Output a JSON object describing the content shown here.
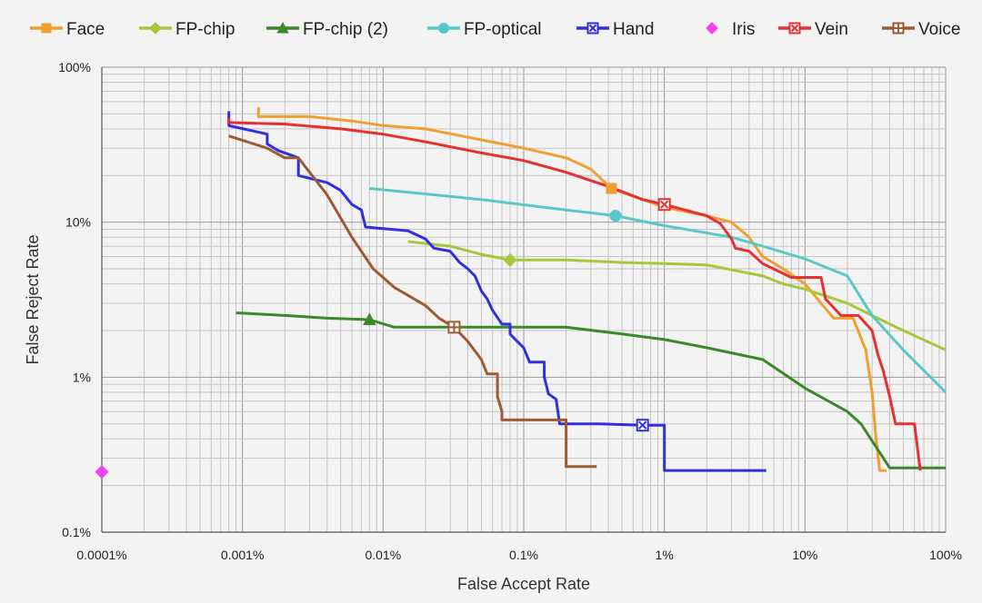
{
  "chart_data": {
    "type": "line",
    "xscale": "log",
    "yscale": "log",
    "xlabel": "False Accept Rate",
    "ylabel": "False Reject Rate",
    "xlim": [
      0.0001,
      100
    ],
    "ylim": [
      0.1,
      100
    ],
    "grid": true,
    "legend_position": "top",
    "x_ticks": [
      {
        "value": 0.0001,
        "label": "0.0001%"
      },
      {
        "value": 0.001,
        "label": "0.001%"
      },
      {
        "value": 0.01,
        "label": "0.01%"
      },
      {
        "value": 0.1,
        "label": "0.1%"
      },
      {
        "value": 1,
        "label": "1%"
      },
      {
        "value": 10,
        "label": "10%"
      },
      {
        "value": 100,
        "label": "100%"
      }
    ],
    "y_ticks": [
      {
        "value": 0.1,
        "label": "0.1%"
      },
      {
        "value": 1,
        "label": "1%"
      },
      {
        "value": 10,
        "label": "10%"
      },
      {
        "value": 100,
        "label": "100%"
      }
    ],
    "series": [
      {
        "name": "Face",
        "color": "#f0a030",
        "marker": "square",
        "marker_at": [
          0.42,
          16.5
        ],
        "points": [
          [
            0.0013,
            55
          ],
          [
            0.0013,
            48
          ],
          [
            0.003,
            48
          ],
          [
            0.006,
            45
          ],
          [
            0.01,
            42
          ],
          [
            0.02,
            40
          ],
          [
            0.05,
            34
          ],
          [
            0.1,
            30
          ],
          [
            0.2,
            26
          ],
          [
            0.3,
            22
          ],
          [
            0.42,
            16.5
          ],
          [
            0.7,
            14
          ],
          [
            1,
            12.5
          ],
          [
            2,
            11
          ],
          [
            3,
            10
          ],
          [
            4,
            8
          ],
          [
            5,
            6
          ],
          [
            7,
            5
          ],
          [
            10,
            4
          ],
          [
            13,
            3
          ],
          [
            16,
            2.4
          ],
          [
            22,
            2.4
          ],
          [
            27,
            1.5
          ],
          [
            30,
            0.8
          ],
          [
            32,
            0.4
          ],
          [
            34,
            0.25
          ],
          [
            38,
            0.25
          ]
        ]
      },
      {
        "name": "FP-chip",
        "color": "#a8c83c",
        "marker": "diamond",
        "marker_at": [
          0.08,
          5.7
        ],
        "points": [
          [
            0.015,
            7.5
          ],
          [
            0.03,
            7
          ],
          [
            0.05,
            6.2
          ],
          [
            0.08,
            5.7
          ],
          [
            0.2,
            5.7
          ],
          [
            0.5,
            5.5
          ],
          [
            1,
            5.4
          ],
          [
            2,
            5.3
          ],
          [
            5,
            4.5
          ],
          [
            7,
            4
          ],
          [
            10,
            3.7
          ],
          [
            20,
            3
          ],
          [
            30,
            2.5
          ],
          [
            50,
            2
          ],
          [
            100,
            1.5
          ]
        ]
      },
      {
        "name": "FP-chip (2)",
        "color": "#3a8a2a",
        "marker": "triangle",
        "marker_at": [
          0.008,
          2.35
        ],
        "points": [
          [
            0.0009,
            2.6
          ],
          [
            0.002,
            2.5
          ],
          [
            0.004,
            2.4
          ],
          [
            0.008,
            2.35
          ],
          [
            0.012,
            2.1
          ],
          [
            0.05,
            2.1
          ],
          [
            0.2,
            2.1
          ],
          [
            0.5,
            1.9
          ],
          [
            1,
            1.75
          ],
          [
            2,
            1.55
          ],
          [
            5,
            1.3
          ],
          [
            10,
            0.85
          ],
          [
            20,
            0.6
          ],
          [
            25,
            0.5
          ],
          [
            40,
            0.26
          ],
          [
            100,
            0.26
          ]
        ]
      },
      {
        "name": "FP-optical",
        "color": "#5ac8c8",
        "marker": "circle",
        "marker_at": [
          0.45,
          11
        ],
        "points": [
          [
            0.008,
            16.5
          ],
          [
            0.05,
            14
          ],
          [
            0.2,
            12
          ],
          [
            0.45,
            11
          ],
          [
            1,
            9.5
          ],
          [
            3,
            8
          ],
          [
            5,
            7
          ],
          [
            10,
            5.8
          ],
          [
            20,
            4.5
          ],
          [
            30,
            2.5
          ],
          [
            50,
            1.5
          ],
          [
            100,
            0.8
          ]
        ]
      },
      {
        "name": "Hand",
        "color": "#3030e0",
        "marker": "xsquare",
        "marker_at": [
          0.7,
          0.49
        ],
        "points": [
          [
            0.0008,
            52
          ],
          [
            0.0008,
            42
          ],
          [
            0.0015,
            37
          ],
          [
            0.0015,
            32
          ],
          [
            0.0018,
            29
          ],
          [
            0.0025,
            26
          ],
          [
            0.0025,
            20
          ],
          [
            0.004,
            18
          ],
          [
            0.005,
            16
          ],
          [
            0.006,
            13
          ],
          [
            0.007,
            12
          ],
          [
            0.0075,
            9.3
          ],
          [
            0.015,
            8.8
          ],
          [
            0.02,
            7.8
          ],
          [
            0.023,
            6.8
          ],
          [
            0.03,
            6.5
          ],
          [
            0.035,
            5.5
          ],
          [
            0.04,
            5
          ],
          [
            0.045,
            4.5
          ],
          [
            0.05,
            3.6
          ],
          [
            0.055,
            3.2
          ],
          [
            0.06,
            2.7
          ],
          [
            0.07,
            2.2
          ],
          [
            0.08,
            2.2
          ],
          [
            0.08,
            1.9
          ],
          [
            0.09,
            1.7
          ],
          [
            0.1,
            1.55
          ],
          [
            0.11,
            1.25
          ],
          [
            0.14,
            1.25
          ],
          [
            0.14,
            1
          ],
          [
            0.15,
            0.78
          ],
          [
            0.17,
            0.72
          ],
          [
            0.18,
            0.5
          ],
          [
            0.35,
            0.5
          ],
          [
            0.7,
            0.49
          ],
          [
            1,
            0.49
          ],
          [
            1,
            0.25
          ],
          [
            5.3,
            0.25
          ]
        ]
      },
      {
        "name": "Iris",
        "color": "#f040f0",
        "marker": "diamond",
        "marker_at": [
          0.0001,
          0.245
        ],
        "points": []
      },
      {
        "name": "Vein",
        "color": "#e83030",
        "marker": "xsquare",
        "marker_at": [
          1,
          13
        ],
        "points": [
          [
            0.0008,
            47
          ],
          [
            0.0008,
            44
          ],
          [
            0.002,
            43
          ],
          [
            0.005,
            40
          ],
          [
            0.01,
            37
          ],
          [
            0.02,
            33
          ],
          [
            0.05,
            28
          ],
          [
            0.1,
            25
          ],
          [
            0.2,
            21
          ],
          [
            0.4,
            17
          ],
          [
            0.7,
            14
          ],
          [
            1,
            13
          ],
          [
            2,
            11
          ],
          [
            2.5,
            9.8
          ],
          [
            3,
            7.8
          ],
          [
            3.2,
            6.8
          ],
          [
            4,
            6.5
          ],
          [
            5,
            5.4
          ],
          [
            8,
            4.4
          ],
          [
            13,
            4.4
          ],
          [
            14,
            3.2
          ],
          [
            18,
            2.5
          ],
          [
            24,
            2.5
          ],
          [
            30,
            2
          ],
          [
            33,
            1.4
          ],
          [
            36,
            1.1
          ],
          [
            40,
            0.75
          ],
          [
            44,
            0.5
          ],
          [
            60,
            0.5
          ],
          [
            66,
            0.25
          ]
        ]
      },
      {
        "name": "Voice",
        "color": "#a05a30",
        "marker": "plus",
        "marker_at": [
          0.032,
          2.1
        ],
        "points": [
          [
            0.0008,
            36
          ],
          [
            0.0015,
            30
          ],
          [
            0.002,
            26
          ],
          [
            0.0025,
            26
          ],
          [
            0.004,
            15
          ],
          [
            0.006,
            8
          ],
          [
            0.0085,
            5
          ],
          [
            0.012,
            3.8
          ],
          [
            0.02,
            2.9
          ],
          [
            0.025,
            2.4
          ],
          [
            0.032,
            2.1
          ],
          [
            0.04,
            1.7
          ],
          [
            0.05,
            1.3
          ],
          [
            0.055,
            1.05
          ],
          [
            0.065,
            1.05
          ],
          [
            0.065,
            0.75
          ],
          [
            0.07,
            0.6
          ],
          [
            0.07,
            0.53
          ],
          [
            0.1,
            0.53
          ],
          [
            0.2,
            0.53
          ],
          [
            0.2,
            0.265
          ],
          [
            0.33,
            0.265
          ]
        ]
      }
    ]
  }
}
